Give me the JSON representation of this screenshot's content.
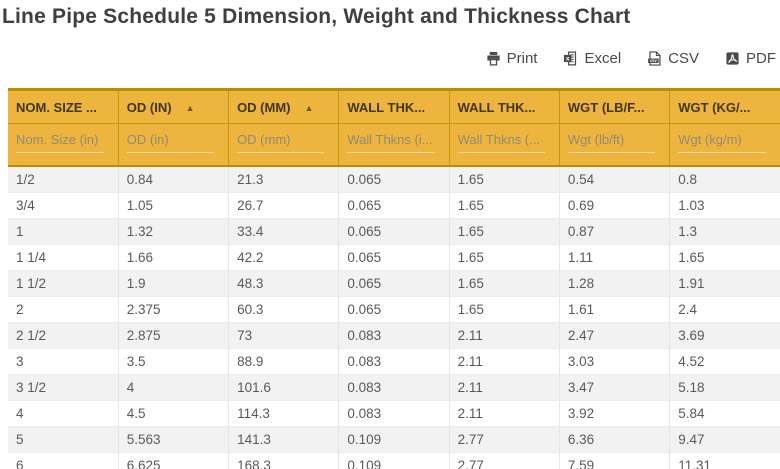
{
  "page": {
    "title": "Line Pipe Schedule 5 Dimension, Weight and Thickness Chart"
  },
  "toolbar": {
    "print_label": "Print",
    "excel_label": "Excel",
    "csv_label": "CSV",
    "pdf_label": "PDF"
  },
  "colors": {
    "header_bg": "#EDB53E",
    "header_border": "#C9940E",
    "header_border_dark": "#BD8A06",
    "header_text": "#42361A",
    "row_alt_bg": "#F2F2F2",
    "cell_text": "#5A5A5A",
    "title_text": "#3F3F3F"
  },
  "table": {
    "sort_icon": "▲",
    "columns": [
      {
        "key": "nom-size",
        "label": "NOM. SIZE ...",
        "sort": null,
        "filter_placeholder": "Nom. Size (in)"
      },
      {
        "key": "od-in",
        "label": "OD (IN)",
        "sort": "asc",
        "filter_placeholder": "OD (in)"
      },
      {
        "key": "od-mm",
        "label": "OD (MM)",
        "sort": "asc",
        "filter_placeholder": "OD (mm)"
      },
      {
        "key": "wall-thk-in",
        "label": "WALL THK...",
        "sort": null,
        "filter_placeholder": "Wall Thkns (i..."
      },
      {
        "key": "wall-thk-mm",
        "label": "WALL THK...",
        "sort": null,
        "filter_placeholder": "Wall Thkns (..."
      },
      {
        "key": "wgt-lb-ft",
        "label": "WGT (LB/F...",
        "sort": null,
        "filter_placeholder": "Wgt (lb/ft)"
      },
      {
        "key": "wgt-kg-m",
        "label": "WGT (KG/...",
        "sort": null,
        "filter_placeholder": "Wgt (kg/m)"
      }
    ],
    "rows": [
      [
        "1/2",
        "0.84",
        "21.3",
        "0.065",
        "1.65",
        "0.54",
        "0.8"
      ],
      [
        "3/4",
        "1.05",
        "26.7",
        "0.065",
        "1.65",
        "0.69",
        "1.03"
      ],
      [
        "1",
        "1.32",
        "33.4",
        "0.065",
        "1.65",
        "0.87",
        "1.3"
      ],
      [
        "1 1/4",
        "1.66",
        "42.2",
        "0.065",
        "1.65",
        "1.11",
        "1.65"
      ],
      [
        "1 1/2",
        "1.9",
        "48.3",
        "0.065",
        "1.65",
        "1.28",
        "1.91"
      ],
      [
        "2",
        "2.375",
        "60.3",
        "0.065",
        "1.65",
        "1.61",
        "2.4"
      ],
      [
        "2 1/2",
        "2.875",
        "73",
        "0.083",
        "2.11",
        "2.47",
        "3.69"
      ],
      [
        "3",
        "3.5",
        "88.9",
        "0.083",
        "2.11",
        "3.03",
        "4.52"
      ],
      [
        "3 1/2",
        "4",
        "101.6",
        "0.083",
        "2.11",
        "3.47",
        "5.18"
      ],
      [
        "4",
        "4.5",
        "114.3",
        "0.083",
        "2.11",
        "3.92",
        "5.84"
      ],
      [
        "5",
        "5.563",
        "141.3",
        "0.109",
        "2.77",
        "6.36",
        "9.47"
      ],
      [
        "6",
        "6.625",
        "168.3",
        "0.109",
        "2.77",
        "7.59",
        "11.31"
      ]
    ]
  }
}
